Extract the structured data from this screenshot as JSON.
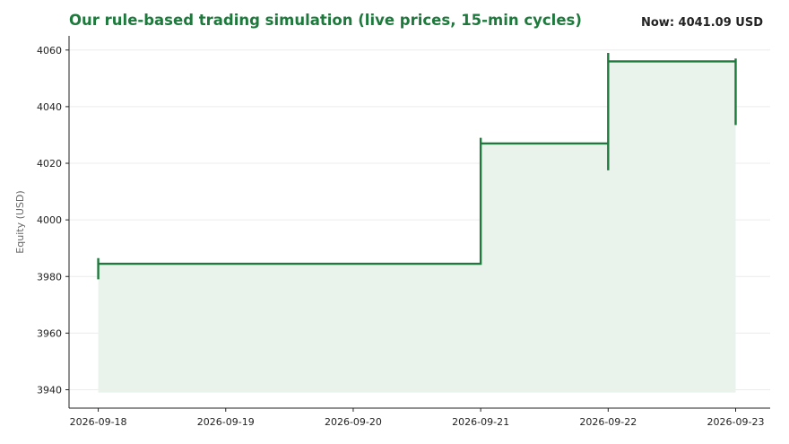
{
  "header": {
    "title": "Our rule-based trading simulation (live prices, 15-min cycles)",
    "now_label": "Now: 4041.09 USD"
  },
  "colors": {
    "line": "#1e7a3c",
    "fill": "#eaf2ec",
    "grid": "#ececec",
    "axis": "#222222"
  },
  "chart_data": {
    "type": "line",
    "step": "post",
    "title": "Our rule-based trading simulation (live prices, 15-min cycles)",
    "xlabel": "",
    "ylabel": "Equity (USD)",
    "ylim": [
      3933.5,
      4065
    ],
    "xlim": [
      "2026-09-17 18:30",
      "2026-09-23 06:30"
    ],
    "yticks": [
      3940,
      3960,
      3980,
      4000,
      4020,
      4040,
      4060
    ],
    "xticks": [
      "2026-09-18",
      "2026-09-19",
      "2026-09-20",
      "2026-09-21",
      "2026-09-22",
      "2026-09-23"
    ],
    "grid": true,
    "fill_baseline": 3939,
    "series": [
      {
        "points": [
          {
            "x": "2026-09-18 00:00",
            "y": 3986.5
          },
          {
            "x": "2026-09-18 00:00",
            "y": 3979
          },
          {
            "x": "2026-09-18 00:00",
            "y": 3984.5
          },
          {
            "x": "2026-09-21 00:00",
            "y": 3984.5
          },
          {
            "x": "2026-09-21 00:00",
            "y": 4029
          },
          {
            "x": "2026-09-21 00:00",
            "y": 4027
          },
          {
            "x": "2026-09-22 00:00",
            "y": 4027
          },
          {
            "x": "2026-09-22 00:00",
            "y": 4017.5
          },
          {
            "x": "2026-09-22 00:00",
            "y": 4059
          },
          {
            "x": "2026-09-22 00:00",
            "y": 4056
          },
          {
            "x": "2026-09-23 00:00",
            "y": 4056
          },
          {
            "x": "2026-09-23 00:00",
            "y": 4057
          },
          {
            "x": "2026-09-23 00:00",
            "y": 4033.5
          }
        ]
      }
    ]
  }
}
